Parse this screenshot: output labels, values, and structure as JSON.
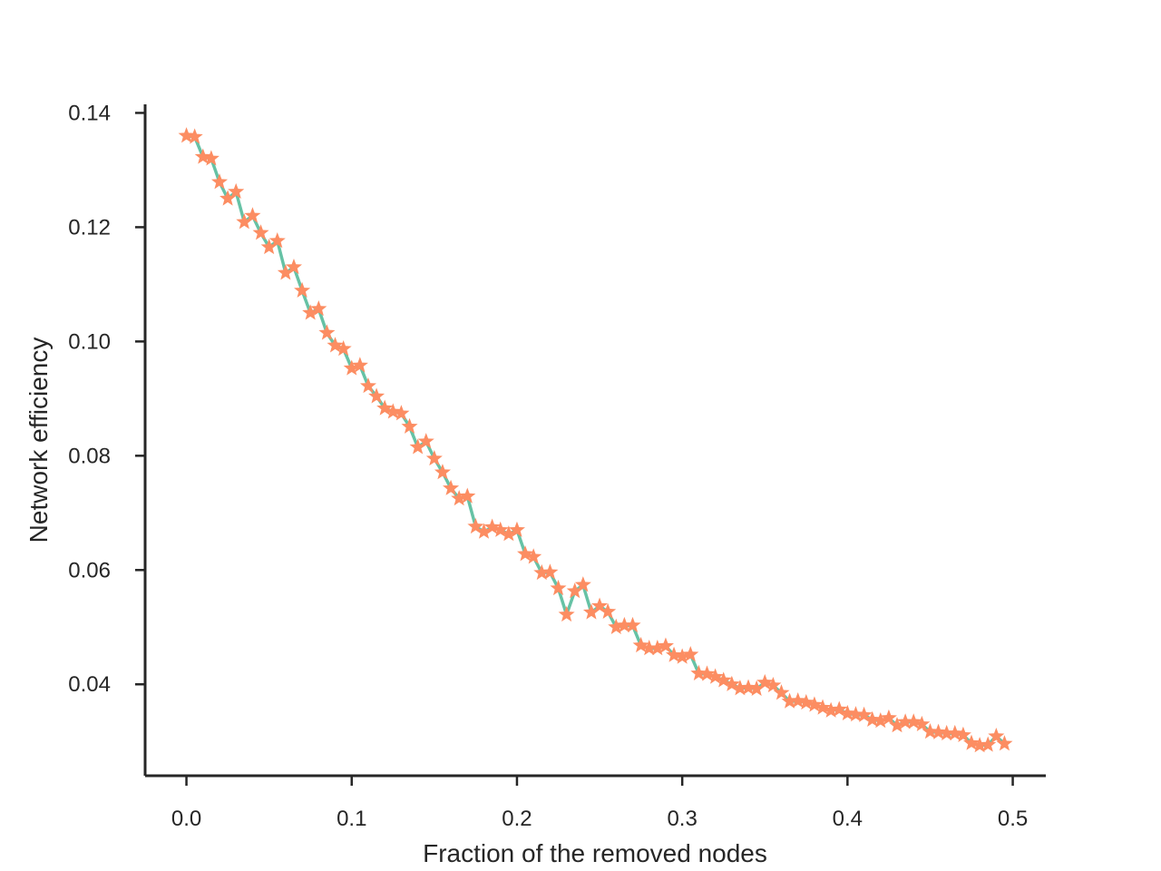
{
  "chart_data": {
    "type": "line",
    "xlabel": "Fraction of the removed nodes",
    "ylabel": "Network efficiency",
    "xlim": [
      -0.025,
      0.52
    ],
    "ylim": [
      0.024,
      0.1415
    ],
    "xticks": [
      0.0,
      0.1,
      0.2,
      0.3,
      0.4,
      0.5
    ],
    "xtick_labels": [
      "0.0",
      "0.1",
      "0.2",
      "0.3",
      "0.4",
      "0.5"
    ],
    "yticks": [
      0.04,
      0.06,
      0.08,
      0.1,
      0.12,
      0.14
    ],
    "ytick_labels": [
      "0.04",
      "0.06",
      "0.08",
      "0.10",
      "0.12",
      "0.14"
    ],
    "grid": false,
    "line_color": "#66c2a5",
    "marker_color": "#fc8d62",
    "marker": "star",
    "series": [
      {
        "x": [
          0.0,
          0.005,
          0.01,
          0.015,
          0.02,
          0.025,
          0.03,
          0.035,
          0.04,
          0.045,
          0.05,
          0.055,
          0.06,
          0.065,
          0.07,
          0.075,
          0.08,
          0.085,
          0.09,
          0.095,
          0.1,
          0.105,
          0.11,
          0.115,
          0.12,
          0.125,
          0.13,
          0.135,
          0.14,
          0.145,
          0.15,
          0.155,
          0.16,
          0.165,
          0.17,
          0.175,
          0.18,
          0.185,
          0.19,
          0.195,
          0.2,
          0.205,
          0.21,
          0.215,
          0.22,
          0.225,
          0.23,
          0.235,
          0.24,
          0.245,
          0.25,
          0.255,
          0.26,
          0.265,
          0.27,
          0.275,
          0.28,
          0.285,
          0.29,
          0.295,
          0.3,
          0.305,
          0.31,
          0.315,
          0.32,
          0.325,
          0.33,
          0.335,
          0.34,
          0.345,
          0.35,
          0.355,
          0.36,
          0.365,
          0.37,
          0.375,
          0.38,
          0.385,
          0.39,
          0.395,
          0.4,
          0.405,
          0.41,
          0.415,
          0.42,
          0.425,
          0.43,
          0.435,
          0.44,
          0.445,
          0.45,
          0.455,
          0.46,
          0.465,
          0.47,
          0.475,
          0.48,
          0.485,
          0.49,
          0.495
        ],
        "values": [
          0.136,
          0.1358,
          0.1323,
          0.132,
          0.1279,
          0.125,
          0.1262,
          0.1209,
          0.122,
          0.119,
          0.1165,
          0.1176,
          0.112,
          0.113,
          0.1089,
          0.105,
          0.1057,
          0.1015,
          0.0993,
          0.0987,
          0.0953,
          0.0958,
          0.0922,
          0.0904,
          0.0883,
          0.0877,
          0.0874,
          0.0851,
          0.0815,
          0.0825,
          0.0795,
          0.0771,
          0.0743,
          0.0725,
          0.0729,
          0.0676,
          0.0667,
          0.0675,
          0.067,
          0.0663,
          0.067,
          0.0628,
          0.0623,
          0.0595,
          0.0596,
          0.0568,
          0.0522,
          0.0563,
          0.0574,
          0.0526,
          0.0537,
          0.0527,
          0.05,
          0.0503,
          0.0503,
          0.0468,
          0.0463,
          0.0463,
          0.0467,
          0.0451,
          0.0448,
          0.0452,
          0.0419,
          0.0418,
          0.0413,
          0.0407,
          0.04,
          0.0393,
          0.0394,
          0.0392,
          0.0403,
          0.0398,
          0.0385,
          0.037,
          0.0371,
          0.0368,
          0.0364,
          0.0359,
          0.0354,
          0.0356,
          0.0349,
          0.0347,
          0.0346,
          0.0338,
          0.0336,
          0.0341,
          0.0328,
          0.0334,
          0.0334,
          0.033,
          0.0317,
          0.0316,
          0.0314,
          0.0314,
          0.0311,
          0.0297,
          0.0293,
          0.0294,
          0.0309,
          0.0296
        ]
      }
    ]
  }
}
